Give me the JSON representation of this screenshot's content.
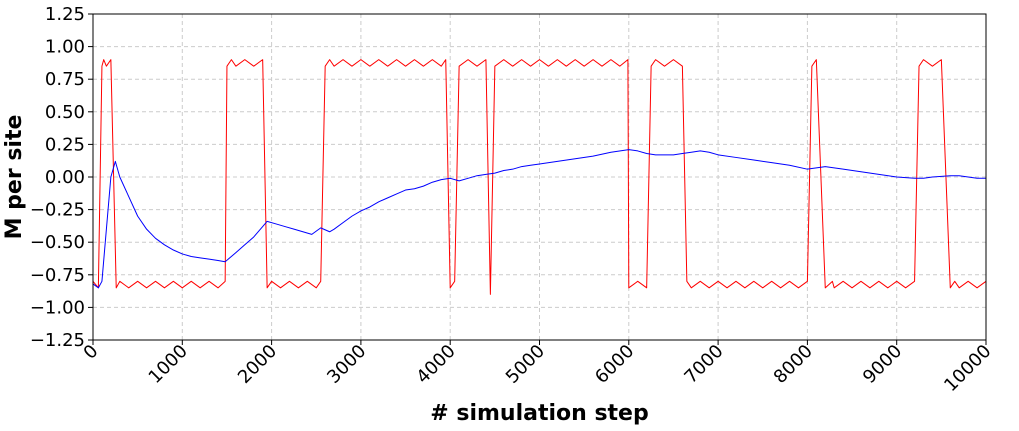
{
  "chart_data": {
    "type": "line",
    "title": "",
    "xlabel": "# simulation step",
    "ylabel": "M per site",
    "xlim": [
      0,
      10000
    ],
    "ylim": [
      -1.25,
      1.25
    ],
    "x_ticks": [
      0,
      1000,
      2000,
      3000,
      4000,
      5000,
      6000,
      7000,
      8000,
      9000,
      10000
    ],
    "x_tick_labels": [
      "0",
      "1000",
      "2000",
      "3000",
      "4000",
      "5000",
      "6000",
      "7000",
      "8000",
      "9000",
      "10000"
    ],
    "y_ticks": [
      1.25,
      1.0,
      0.75,
      0.5,
      0.25,
      0.0,
      -0.25,
      -0.5,
      -0.75,
      -1.0,
      -1.25
    ],
    "y_tick_labels": [
      "1.25",
      "1.00",
      "0.75",
      "0.50",
      "0.25",
      "0.00",
      "−0.25",
      "−0.50",
      "−0.75",
      "−1.00",
      "−1.25"
    ],
    "grid": true,
    "legend": "none",
    "series": [
      {
        "color": "#ff0000",
        "description_style": "instantaneous magnetization, noisy",
        "x": [
          0,
          60,
          100,
          120,
          150,
          200,
          260,
          300,
          400,
          500,
          600,
          700,
          800,
          900,
          1000,
          1100,
          1200,
          1300,
          1400,
          1480,
          1500,
          1550,
          1600,
          1700,
          1800,
          1900,
          1950,
          2000,
          2100,
          2200,
          2300,
          2400,
          2500,
          2550,
          2600,
          2650,
          2700,
          2800,
          2900,
          3000,
          3100,
          3200,
          3300,
          3400,
          3500,
          3600,
          3700,
          3800,
          3900,
          3950,
          4000,
          4050,
          4100,
          4200,
          4300,
          4400,
          4450,
          4500,
          4600,
          4700,
          4800,
          4900,
          5000,
          5100,
          5200,
          5300,
          5400,
          5500,
          5600,
          5700,
          5800,
          5900,
          5990,
          6000,
          6100,
          6200,
          6250,
          6300,
          6400,
          6500,
          6600,
          6650,
          6700,
          6800,
          6900,
          7000,
          7100,
          7200,
          7300,
          7400,
          7500,
          7600,
          7700,
          7800,
          7900,
          8000,
          8050,
          8100,
          8200,
          8280,
          8300,
          8400,
          8500,
          8600,
          8700,
          8800,
          8900,
          9000,
          9100,
          9200,
          9250,
          9300,
          9400,
          9500,
          9600,
          9650,
          9700,
          9800,
          9900,
          10000
        ],
        "values": [
          -0.8,
          -0.85,
          0.85,
          0.9,
          0.85,
          0.9,
          -0.85,
          -0.8,
          -0.85,
          -0.8,
          -0.85,
          -0.8,
          -0.85,
          -0.8,
          -0.85,
          -0.8,
          -0.85,
          -0.8,
          -0.85,
          -0.8,
          0.85,
          0.9,
          0.85,
          0.9,
          0.85,
          0.9,
          -0.85,
          -0.8,
          -0.85,
          -0.8,
          -0.85,
          -0.8,
          -0.85,
          -0.8,
          0.85,
          0.9,
          0.85,
          0.9,
          0.85,
          0.9,
          0.85,
          0.9,
          0.85,
          0.9,
          0.85,
          0.9,
          0.85,
          0.9,
          0.85,
          0.9,
          -0.85,
          -0.8,
          0.85,
          0.9,
          0.85,
          0.9,
          -0.9,
          0.85,
          0.9,
          0.85,
          0.9,
          0.85,
          0.9,
          0.85,
          0.9,
          0.85,
          0.9,
          0.85,
          0.9,
          0.85,
          0.9,
          0.85,
          0.9,
          -0.85,
          -0.8,
          -0.85,
          0.85,
          0.9,
          0.85,
          0.9,
          0.85,
          -0.8,
          -0.85,
          -0.8,
          -0.85,
          -0.8,
          -0.85,
          -0.8,
          -0.85,
          -0.8,
          -0.85,
          -0.8,
          -0.85,
          -0.8,
          -0.85,
          -0.8,
          0.85,
          0.9,
          -0.85,
          -0.8,
          -0.85,
          -0.8,
          -0.85,
          -0.8,
          -0.85,
          -0.8,
          -0.85,
          -0.8,
          -0.85,
          -0.8,
          0.85,
          0.9,
          0.85,
          0.9,
          -0.85,
          -0.8,
          -0.85,
          -0.8,
          -0.85,
          -0.8
        ]
      },
      {
        "color": "#0000ff",
        "description_style": "running average",
        "x": [
          0,
          60,
          100,
          150,
          200,
          250,
          300,
          400,
          500,
          600,
          700,
          800,
          900,
          1000,
          1100,
          1200,
          1300,
          1400,
          1480,
          1600,
          1700,
          1800,
          1900,
          1950,
          2050,
          2150,
          2250,
          2350,
          2450,
          2550,
          2650,
          2700,
          2800,
          2900,
          3000,
          3100,
          3200,
          3300,
          3400,
          3500,
          3600,
          3700,
          3800,
          3900,
          4000,
          4100,
          4200,
          4300,
          4400,
          4500,
          4600,
          4700,
          4800,
          4900,
          5000,
          5200,
          5400,
          5600,
          5800,
          6000,
          6100,
          6200,
          6300,
          6400,
          6500,
          6600,
          6700,
          6800,
          6900,
          7000,
          7200,
          7400,
          7600,
          7800,
          8000,
          8100,
          8200,
          8300,
          8400,
          8600,
          8800,
          9000,
          9200,
          9300,
          9400,
          9600,
          9700,
          9800,
          9900,
          10000
        ],
        "values": [
          -0.82,
          -0.85,
          -0.8,
          -0.4,
          0.0,
          0.12,
          0.0,
          -0.15,
          -0.3,
          -0.4,
          -0.47,
          -0.52,
          -0.56,
          -0.59,
          -0.61,
          -0.62,
          -0.63,
          -0.64,
          -0.65,
          -0.58,
          -0.52,
          -0.46,
          -0.38,
          -0.34,
          -0.36,
          -0.38,
          -0.4,
          -0.42,
          -0.44,
          -0.39,
          -0.42,
          -0.4,
          -0.35,
          -0.3,
          -0.26,
          -0.23,
          -0.19,
          -0.16,
          -0.13,
          -0.1,
          -0.09,
          -0.07,
          -0.04,
          -0.02,
          -0.01,
          -0.03,
          -0.01,
          0.01,
          0.02,
          0.03,
          0.05,
          0.06,
          0.08,
          0.09,
          0.1,
          0.12,
          0.14,
          0.16,
          0.19,
          0.21,
          0.2,
          0.18,
          0.17,
          0.17,
          0.17,
          0.18,
          0.19,
          0.2,
          0.19,
          0.17,
          0.15,
          0.13,
          0.11,
          0.09,
          0.06,
          0.07,
          0.08,
          0.07,
          0.06,
          0.04,
          0.02,
          0.0,
          -0.01,
          -0.01,
          0.0,
          0.01,
          0.01,
          0.0,
          -0.01,
          -0.01
        ]
      }
    ]
  }
}
